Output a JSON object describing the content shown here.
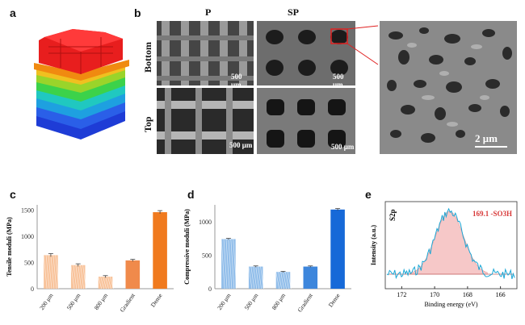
{
  "figure": {
    "panels": [
      "a",
      "b",
      "c",
      "d",
      "e"
    ],
    "sem": {
      "columns": [
        "P",
        "SP"
      ],
      "rows": [
        "Bottom",
        "Top"
      ],
      "scale_bars": [
        "500 μm",
        "500 μm",
        "500 μm",
        "500 μm"
      ],
      "zoom_scale": "2 μm"
    }
  },
  "chart_data": [
    {
      "type": "bar",
      "panel": "c",
      "ylabel": "Tensile moduli (MPa)",
      "categories": [
        "200 μm",
        "500 μm",
        "800 μm",
        "Gradient",
        "Dense"
      ],
      "values": [
        640,
        450,
        230,
        540,
        1460
      ],
      "errors": [
        30,
        25,
        20,
        20,
        30
      ],
      "yticks": [
        0,
        500,
        1000,
        1500
      ],
      "ylim": [
        0,
        1600
      ],
      "colors": [
        "#f7b98a",
        "#f7b98a",
        "#f7b98a",
        "#f08a4b",
        "#f07a1e"
      ]
    },
    {
      "type": "bar",
      "panel": "d",
      "ylabel": "Compressive moduli (MPa)",
      "categories": [
        "200 μm",
        "500 μm",
        "800 μm",
        "Gradient",
        "Dense"
      ],
      "values": [
        740,
        330,
        250,
        330,
        1180
      ],
      "errors": [
        10,
        10,
        8,
        10,
        15
      ],
      "yticks": [
        0,
        500,
        1000
      ],
      "ylim": [
        0,
        1250
      ],
      "colors": [
        "#7fb3e6",
        "#7fb3e6",
        "#7fb3e6",
        "#3d86dc",
        "#1669d8"
      ]
    },
    {
      "type": "line",
      "panel": "e",
      "title": "S2p",
      "annotation": "169.1 -SO3H",
      "xlabel": "Binding energy (eV)",
      "ylabel": "Intensity (a.u.)",
      "xticks": [
        172,
        170,
        168,
        166
      ],
      "xlim": [
        173,
        165
      ],
      "reversed_x": true,
      "peak_center": 169.1,
      "colors": {
        "data": "#1aa7d6",
        "fit": "#f4b6b6",
        "baseline": "#c06060"
      }
    }
  ]
}
